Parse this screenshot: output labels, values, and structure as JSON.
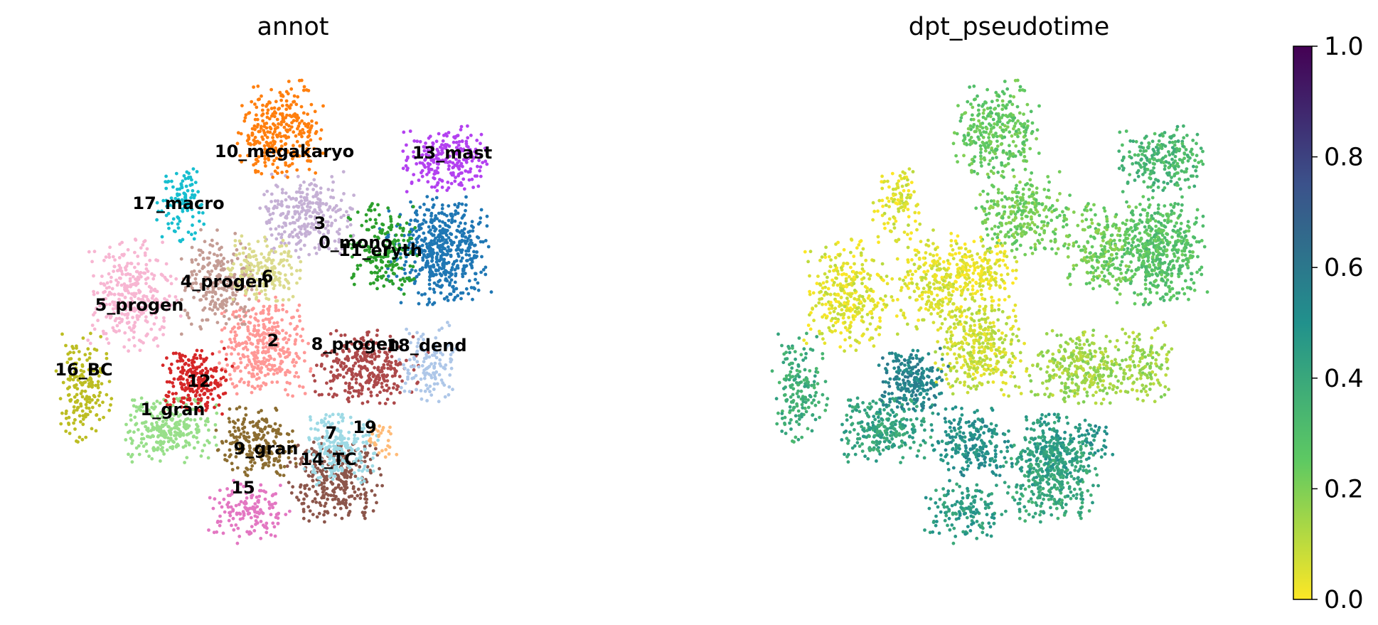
{
  "chart_data": [
    {
      "type": "scatter",
      "title": "annot",
      "xlabel": "",
      "ylabel": "",
      "grid": false,
      "legend": "on data",
      "clusters": [
        {
          "label": "0_mono",
          "color": "#1f77b4",
          "center": [
            497,
            284
          ],
          "spread": [
            55,
            58
          ],
          "n": 520
        },
        {
          "label": "1_gran",
          "color": "#98df8a",
          "center": [
            190,
            487
          ],
          "spread": [
            52,
            35
          ],
          "n": 260
        },
        {
          "label": "2",
          "color": "#ff9896",
          "center": [
            300,
            393
          ],
          "spread": [
            48,
            55
          ],
          "n": 360
        },
        {
          "label": "3",
          "color": "#c5b0d5",
          "center": [
            348,
            243
          ],
          "spread": [
            50,
            45
          ],
          "n": 280
        },
        {
          "label": "4_progen",
          "color": "#c49c94",
          "center": [
            248,
            320
          ],
          "spread": [
            40,
            55
          ],
          "n": 230
        },
        {
          "label": "5_progen",
          "color": "#f7b6d2",
          "center": [
            150,
            335
          ],
          "spread": [
            48,
            58
          ],
          "n": 320
        },
        {
          "label": "6",
          "color": "#dbdb8d",
          "center": [
            300,
            308
          ],
          "spread": [
            38,
            38
          ],
          "n": 190
        },
        {
          "label": "7",
          "color": "#8c564b",
          "center": [
            380,
            545
          ],
          "spread": [
            50,
            45
          ],
          "n": 300
        },
        {
          "label": "8_progen",
          "color": "#ad494a",
          "center": [
            415,
            418
          ],
          "spread": [
            55,
            40
          ],
          "n": 300
        },
        {
          "label": "9_gran",
          "color": "#8c6d31",
          "center": [
            290,
            503
          ],
          "spread": [
            42,
            38
          ],
          "n": 220
        },
        {
          "label": "10_megakaryo",
          "color": "#ff7f0e",
          "center": [
            318,
            148
          ],
          "spread": [
            45,
            52
          ],
          "n": 300
        },
        {
          "label": "11_eryth",
          "color": "#2ca02c",
          "center": [
            433,
            283
          ],
          "spread": [
            38,
            48
          ],
          "n": 190
        },
        {
          "label": "12",
          "color": "#d62728",
          "center": [
            222,
            433
          ],
          "spread": [
            38,
            35
          ],
          "n": 230
        },
        {
          "label": "13_mast",
          "color": "#b341f0",
          "center": [
            506,
            180
          ],
          "spread": [
            45,
            35
          ],
          "n": 230
        },
        {
          "label": "14_TC",
          "color": "#9edae5",
          "center": [
            385,
            508
          ],
          "spread": [
            40,
            38
          ],
          "n": 220
        },
        {
          "label": "15",
          "color": "#e377c2",
          "center": [
            282,
            580
          ],
          "spread": [
            45,
            32
          ],
          "n": 150
        },
        {
          "label": "16_BC",
          "color": "#bcbd22",
          "center": [
            95,
            442
          ],
          "spread": [
            30,
            60
          ],
          "n": 170
        },
        {
          "label": "17_macro",
          "color": "#17becf",
          "center": [
            205,
            230
          ],
          "spread": [
            25,
            42
          ],
          "n": 110
        },
        {
          "label": "18_dend",
          "color": "#aec7e8",
          "center": [
            485,
            410
          ],
          "spread": [
            32,
            45
          ],
          "n": 130
        },
        {
          "label": "19",
          "color": "#ffbb78",
          "center": [
            430,
            500
          ],
          "spread": [
            20,
            20
          ],
          "n": 30
        }
      ]
    },
    {
      "type": "scatter",
      "title": "dpt_pseudotime",
      "xlabel": "",
      "ylabel": "",
      "grid": false,
      "colorbar": {
        "colormap": "viridis",
        "range": [
          0.0,
          1.0
        ],
        "ticks": [
          "0.0",
          "0.2",
          "0.4",
          "0.6",
          "0.8",
          "1.0"
        ],
        "colors": [
          "#fde725",
          "#5ec962",
          "#21918c",
          "#3b528b",
          "#440154"
        ]
      }
    }
  ]
}
